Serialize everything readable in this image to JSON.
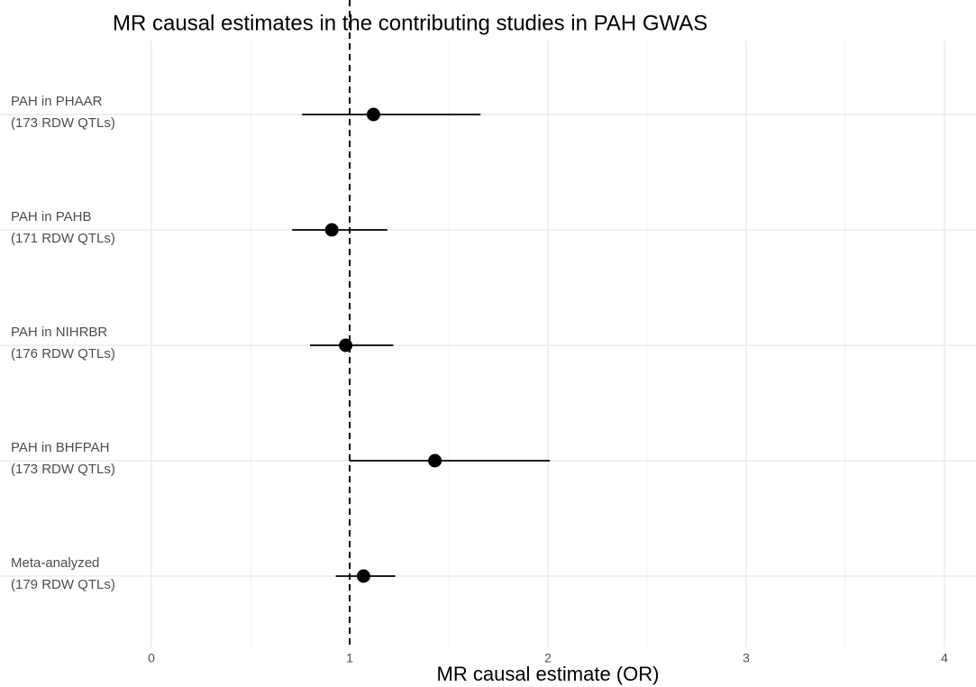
{
  "chart_data": {
    "type": "forest",
    "title": "MR causal estimates in the contributing studies in PAH GWAS",
    "x_label": "MR causal estimate (OR)",
    "categories": [
      [
        "PAH in PHAAR",
        "(173 RDW QTLs)"
      ],
      [
        "PAH in PAHB",
        "(171 RDW QTLs)"
      ],
      [
        "PAH in NIHRBR",
        "(176 RDW QTLs)"
      ],
      [
        "PAH in BHFPAH",
        "(173 RDW QTLs)"
      ],
      [
        "Meta-analyzed",
        "(179 RDW QTLs)"
      ]
    ],
    "values": [
      1.12,
      0.91,
      0.98,
      1.43,
      1.07
    ],
    "lower": [
      0.76,
      0.71,
      0.8,
      1.0,
      0.93
    ],
    "upper": [
      1.66,
      1.19,
      1.22,
      2.01,
      1.23
    ],
    "color": "#000000",
    "xlim": [
      -0.75,
      4.15
    ],
    "xticks": [
      0,
      1,
      2,
      3,
      4
    ],
    "xticks_minor": [
      0.5,
      1.5,
      2.5,
      3.5
    ],
    "reference_line": 1,
    "grid": true
  }
}
